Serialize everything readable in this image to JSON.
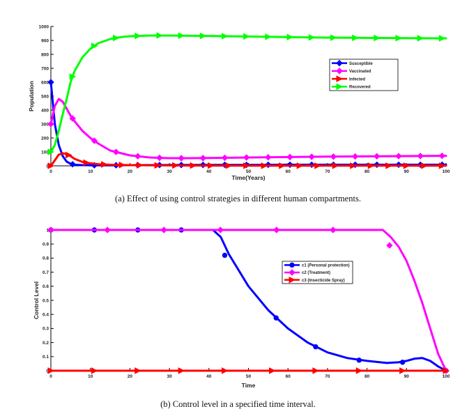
{
  "captions": {
    "a": "(a)  Effect of using control strategies in different human compartments.",
    "b": "(b)  Control level in a specified time interval."
  },
  "chart_data": [
    {
      "type": "line",
      "title": "",
      "xlabel": "Time(Years)",
      "ylabel": "Population",
      "xlim": [
        0,
        100
      ],
      "ylim": [
        0,
        1000
      ],
      "xticks": [
        "0",
        "10",
        "20",
        "30",
        "40",
        "50",
        "60",
        "70",
        "80",
        "90",
        "100"
      ],
      "yticks": [
        "0",
        "100",
        "200",
        "300",
        "400",
        "500",
        "600",
        "700",
        "800",
        "900",
        "1000"
      ],
      "legend_position": "top-right",
      "series": [
        {
          "name": "Susceptible",
          "color": "#0000ff",
          "marker": "diamond",
          "x": [
            0,
            1,
            2,
            3,
            4,
            5,
            6,
            8,
            10,
            15,
            20,
            30,
            40,
            50,
            60,
            70,
            80,
            90,
            100
          ],
          "y": [
            600,
            300,
            150,
            70,
            30,
            15,
            8,
            5,
            4,
            4,
            5,
            6,
            7,
            7,
            8,
            8,
            8,
            8,
            8
          ]
        },
        {
          "name": "Vaccinated",
          "color": "#ff00ff",
          "marker": "diamond",
          "x": [
            0,
            1,
            2,
            3,
            4,
            5,
            6,
            8,
            10,
            12,
            15,
            20,
            25,
            30,
            35,
            40,
            50,
            60,
            70,
            80,
            90,
            100
          ],
          "y": [
            300,
            430,
            480,
            460,
            410,
            360,
            320,
            250,
            200,
            160,
            110,
            75,
            60,
            55,
            55,
            56,
            60,
            63,
            66,
            68,
            70,
            72
          ]
        },
        {
          "name": "Infected",
          "color": "#ff0000",
          "marker": "triangle-right",
          "x": [
            0,
            1,
            2,
            3,
            4,
            5,
            6,
            8,
            10,
            12,
            15,
            20,
            30,
            40,
            50,
            60,
            70,
            80,
            90,
            100
          ],
          "y": [
            0,
            40,
            80,
            90,
            85,
            70,
            50,
            28,
            18,
            12,
            8,
            5,
            3,
            2,
            1,
            1,
            1,
            1,
            1,
            1
          ]
        },
        {
          "name": "Recovered",
          "color": "#00ff00",
          "marker": "triangle-right",
          "x": [
            0,
            1,
            2,
            3,
            4,
            5,
            6,
            8,
            10,
            12,
            15,
            18,
            20,
            25,
            30,
            40,
            50,
            60,
            70,
            80,
            90,
            100
          ],
          "y": [
            100,
            150,
            250,
            370,
            480,
            600,
            680,
            780,
            840,
            880,
            910,
            925,
            930,
            935,
            935,
            932,
            928,
            924,
            920,
            918,
            916,
            915
          ]
        }
      ]
    },
    {
      "type": "line",
      "title": "",
      "xlabel": "Time",
      "ylabel": "Control Level",
      "xlim": [
        0,
        100
      ],
      "ylim": [
        0,
        1
      ],
      "xticks": [
        "0",
        "10",
        "20",
        "30",
        "40",
        "50",
        "60",
        "70",
        "80",
        "90",
        "100"
      ],
      "yticks": [
        "0",
        "0.1",
        "0.2",
        "0.3",
        "0.4",
        "0.5",
        "0.6",
        "0.7",
        "0.8",
        "0.9",
        "1"
      ],
      "legend_position": "top-right",
      "series": [
        {
          "name": "c1 (Personal protection)",
          "color": "#0000ff",
          "marker": "circle",
          "x": [
            0,
            10,
            20,
            30,
            40,
            41,
            43,
            45,
            50,
            55,
            60,
            65,
            70,
            75,
            80,
            85,
            88,
            90,
            92,
            94,
            96,
            98,
            100
          ],
          "y": [
            1,
            1,
            1,
            1,
            1,
            1,
            0.95,
            0.83,
            0.6,
            0.43,
            0.3,
            0.2,
            0.13,
            0.09,
            0.07,
            0.055,
            0.06,
            0.07,
            0.085,
            0.09,
            0.07,
            0.03,
            0
          ],
          "marker_x": [
            0,
            11,
            22,
            33,
            44,
            57,
            67,
            78,
            89,
            100
          ],
          "marker_y": [
            1,
            1,
            1,
            1,
            0.82,
            0.375,
            0.17,
            0.075,
            0.06,
            0
          ]
        },
        {
          "name": "c2 (Treatment)",
          "color": "#ff00ff",
          "marker": "diamond",
          "x": [
            0,
            10,
            20,
            30,
            40,
            50,
            60,
            70,
            80,
            84,
            86,
            88,
            90,
            92,
            94,
            96,
            98,
            100
          ],
          "y": [
            1,
            1,
            1,
            1,
            1,
            1,
            1,
            1,
            1,
            1,
            0.95,
            0.88,
            0.78,
            0.64,
            0.48,
            0.3,
            0.12,
            0
          ],
          "marker_x": [
            0,
            14.3,
            28.6,
            42.9,
            57.1,
            71.4,
            85.7,
            100
          ],
          "marker_y": [
            1,
            1,
            1,
            1,
            1,
            1,
            0.89,
            0
          ]
        },
        {
          "name": "c3 (Insecticide Spray)",
          "color": "#ff0000",
          "marker": "triangle-right",
          "x": [
            0,
            100
          ],
          "y": [
            0,
            0
          ],
          "marker_x": [
            0,
            11,
            22,
            33,
            44,
            56,
            67,
            78,
            89,
            100
          ],
          "marker_y": [
            0,
            0,
            0,
            0,
            0,
            0,
            0,
            0,
            0,
            0
          ]
        }
      ]
    }
  ]
}
